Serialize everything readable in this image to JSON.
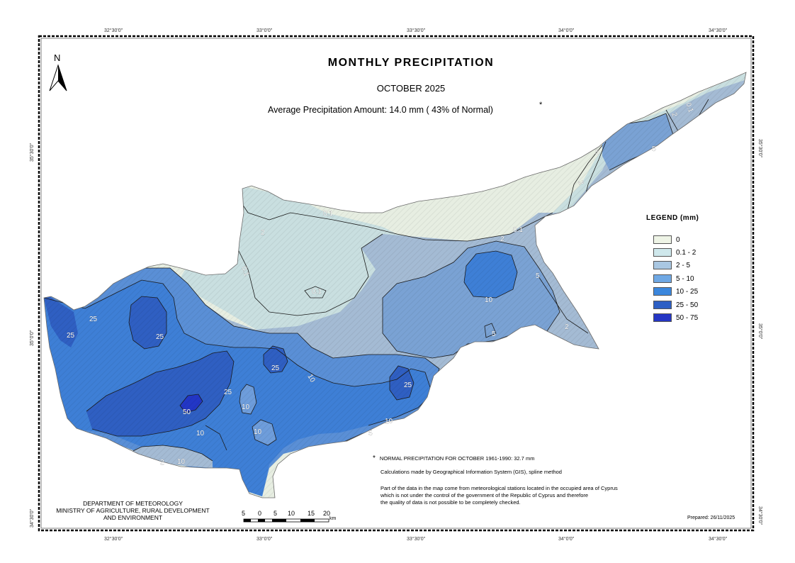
{
  "map": {
    "title": "MONTHLY  PRECIPITATION",
    "subtitle": "OCTOBER 2025",
    "average_text": "Average Precipitation Amount: 14.0 mm  ( 43% of Normal)",
    "average_star": "*",
    "north_letter": "N"
  },
  "coordinates": {
    "top": [
      "32°30'0\"",
      "33°0'0\"",
      "33°30'0\"",
      "34°0'0\"",
      "34°30'0\""
    ],
    "bottom": [
      "32°30'0\"",
      "33°0'0\"",
      "33°30'0\"",
      "34°0'0\"",
      "34°30'0\""
    ],
    "left": [
      "35°30'0\"",
      "35°0'0\"",
      "34°30'0\""
    ],
    "right": [
      "35°30'0\"",
      "35°0'0\"",
      "34°30'0\""
    ]
  },
  "legend": {
    "title": "LEGEND (mm)",
    "items": [
      {
        "label": "0",
        "color": "#eef4e6"
      },
      {
        "label": "0.1 - 2",
        "color": "#cfe8ec"
      },
      {
        "label": "2 - 5",
        "color": "#a9c7e2"
      },
      {
        "label": "5 - 10",
        "color": "#6fa8e4"
      },
      {
        "label": "10 - 25",
        "color": "#3b87dd"
      },
      {
        "label": "25 - 50",
        "color": "#2d5fc4"
      },
      {
        "label": "50 - 75",
        "color": "#2536c4"
      }
    ]
  },
  "contour_labels": [
    "0.1",
    "0.1",
    "0.1",
    "0.1",
    "0.1",
    "2",
    "2",
    "2",
    "2",
    "2",
    "2",
    "5",
    "5",
    "5",
    "5",
    "5",
    "10",
    "10",
    "10",
    "10",
    "10",
    "10",
    "10",
    "25",
    "25",
    "25",
    "25",
    "25",
    "25",
    "50"
  ],
  "notes": {
    "star": "*",
    "normal": "NORMAL PRECIPITATION FOR OCTOBER 1961-1990: 32.7 mm",
    "method": "Calculations made by Geographical Information System (GIS),  spline method",
    "disclaimer_1": "Part of the data in the map come from meteorological stations located in the occupied area of Cyprus",
    "disclaimer_2": "which is not under the control of the government of the Republic of Cyprus and therefore",
    "disclaimer_3": "the quality of data is not possible to be completely checked."
  },
  "department": {
    "line1": "DEPARTMENT OF METEOROLOGY",
    "line2": "MINISTRY OF AGRICULTURE, RURAL DEVELOPMENT",
    "line3": "AND ENVIRONMENT"
  },
  "scale_bar": {
    "labels": [
      "5",
      "0",
      "5",
      "10",
      "15",
      "20"
    ],
    "unit": "km"
  },
  "prepared": "Prepared: 26/11/2025"
}
